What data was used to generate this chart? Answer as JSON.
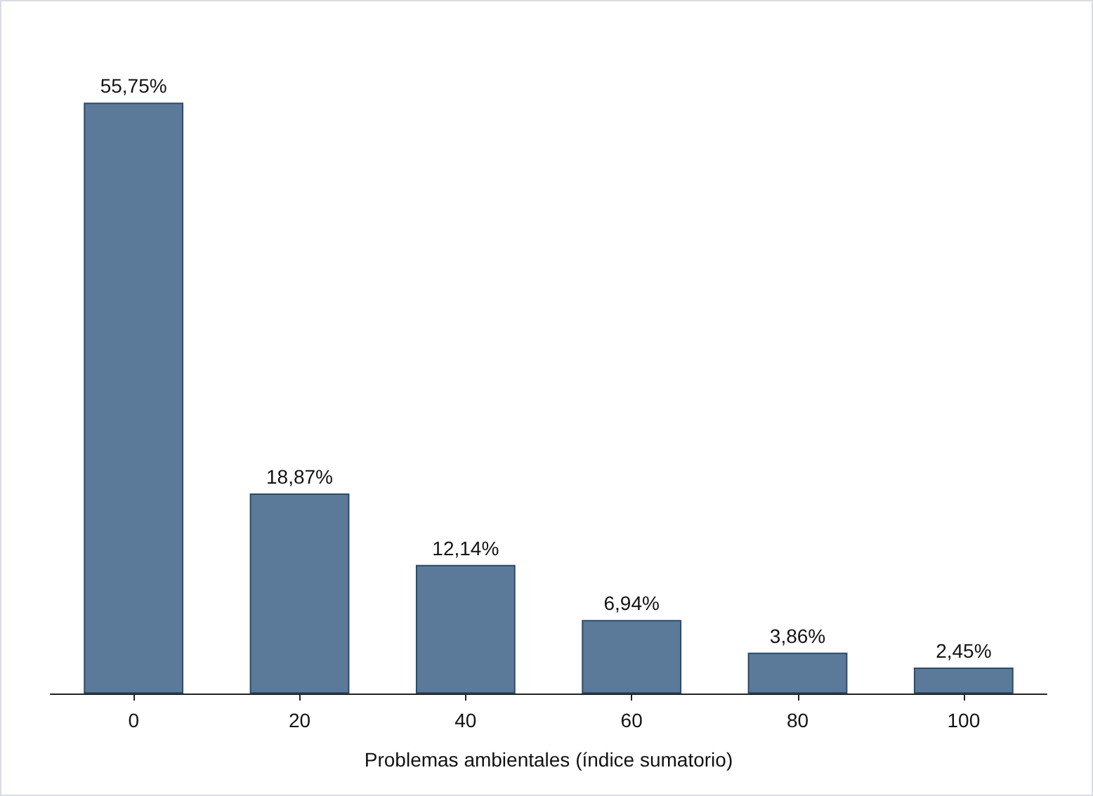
{
  "chart_data": {
    "type": "bar",
    "xlabel": "Problemas ambientales (índice sumatorio)",
    "categories": [
      "0",
      "20",
      "40",
      "60",
      "80",
      "100"
    ],
    "values": [
      55.75,
      18.87,
      12.14,
      6.94,
      3.86,
      2.45
    ],
    "value_labels": [
      "55,75%",
      "18,87%",
      "12,14%",
      "6,94%",
      "3,86%",
      "2,45%"
    ],
    "color": "#5b7a99"
  }
}
